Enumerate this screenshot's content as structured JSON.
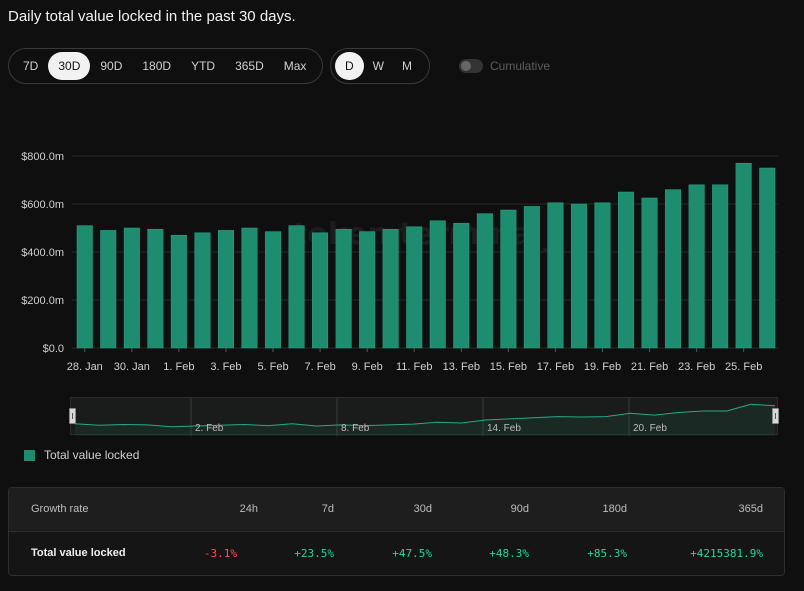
{
  "title": "Daily total value locked in the past 30 days.",
  "periods": [
    "7D",
    "30D",
    "90D",
    "180D",
    "YTD",
    "365D",
    "Max"
  ],
  "active_period": "30D",
  "granularities": [
    "D",
    "W",
    "M"
  ],
  "active_granularity": "D",
  "cumulative_label": "Cumulative",
  "watermark": "token terminal_",
  "colors": {
    "bar": "#1e8c6e",
    "bar_stroke": "#2aa884",
    "negative": "#ff4d4d",
    "positive": "#2fd39a"
  },
  "chart_data": {
    "type": "bar",
    "title": "Daily total value locked in the past 30 days.",
    "ylabel": "",
    "xlabel": "",
    "ylim": [
      0,
      800
    ],
    "y_ticks": [
      "$0.0",
      "$200.0m",
      "$400.0m",
      "$600.0m",
      "$800.0m"
    ],
    "x_tick_labels": [
      "28. Jan",
      "30. Jan",
      "1. Feb",
      "3. Feb",
      "5. Feb",
      "7. Feb",
      "9. Feb",
      "11. Feb",
      "13. Feb",
      "15. Feb",
      "17. Feb",
      "19. Feb",
      "21. Feb",
      "23. Feb",
      "25. Feb"
    ],
    "categories": [
      "28. Jan",
      "29. Jan",
      "30. Jan",
      "31. Jan",
      "1. Feb",
      "2. Feb",
      "3. Feb",
      "4. Feb",
      "5. Feb",
      "6. Feb",
      "7. Feb",
      "8. Feb",
      "9. Feb",
      "10. Feb",
      "11. Feb",
      "12. Feb",
      "13. Feb",
      "14. Feb",
      "15. Feb",
      "16. Feb",
      "17. Feb",
      "18. Feb",
      "19. Feb",
      "20. Feb",
      "21. Feb",
      "22. Feb",
      "23. Feb",
      "24. Feb",
      "25. Feb",
      "26. Feb"
    ],
    "series": [
      {
        "name": "Total value locked",
        "values": [
          510,
          490,
          500,
          495,
          470,
          480,
          490,
          500,
          485,
          510,
          480,
          495,
          485,
          495,
          505,
          530,
          520,
          560,
          575,
          590,
          605,
          600,
          605,
          650,
          625,
          660,
          680,
          680,
          770,
          750
        ]
      }
    ],
    "legend": "bottom-left",
    "grid": true
  },
  "navigator": {
    "labels": [
      "2. Feb",
      "8. Feb",
      "14. Feb",
      "20. Feb"
    ]
  },
  "growth": {
    "header_label": "Growth rate",
    "columns": [
      "24h",
      "7d",
      "30d",
      "90d",
      "180d",
      "365d"
    ],
    "rows": [
      {
        "label": "Total value locked",
        "values": [
          "-3.1%",
          "+23.5%",
          "+47.5%",
          "+48.3%",
          "+85.3%",
          "+4215381.9%"
        ]
      }
    ]
  }
}
